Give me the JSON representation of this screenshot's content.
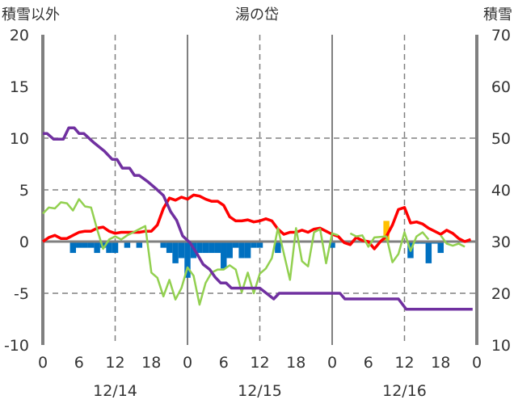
{
  "chart_data": {
    "type": "line",
    "title": "湯の岱",
    "ylabel_left": "積雪以外",
    "ylabel_right": "積雪",
    "ylim_left": [
      -10,
      20
    ],
    "ylim_right": [
      10,
      70
    ],
    "yticks_left": [
      "20",
      "15",
      "10",
      "5",
      "0",
      "-5",
      "-10"
    ],
    "yticks_left_values": [
      20,
      15,
      10,
      5,
      0,
      -5,
      -10
    ],
    "yticks_right": [
      "70",
      "60",
      "50",
      "40",
      "30",
      "20",
      "10"
    ],
    "yticks_right_values": [
      70,
      60,
      50,
      40,
      30,
      20,
      10
    ],
    "xlim_hours": [
      0,
      72
    ],
    "xticks": [
      "0",
      "6",
      "12",
      "18",
      "0",
      "6",
      "12",
      "18",
      "0",
      "6",
      "12",
      "18",
      "0"
    ],
    "dates": [
      {
        "label": "12/14",
        "hour": 12
      },
      {
        "label": "12/15",
        "hour": 36
      },
      {
        "label": "12/16",
        "hour": 60
      }
    ],
    "grid": "dashed horizontal at 10, 5, -5; dashed vertical at 12h; solid vertical at 0h",
    "colors": {
      "red": "#ff0000",
      "green": "#92d050",
      "purple": "#7030a0",
      "blue": "#0070c0",
      "orange": "#ffc000",
      "axis": "#808080"
    },
    "series": [
      {
        "name": "red",
        "axis": "left",
        "points": [
          [
            0,
            0
          ],
          [
            1,
            0.4
          ],
          [
            2,
            0.6
          ],
          [
            3,
            0.3
          ],
          [
            4,
            0.3
          ],
          [
            5,
            0.6
          ],
          [
            6,
            0.9
          ],
          [
            7,
            1.0
          ],
          [
            8,
            1.0
          ],
          [
            9,
            1.3
          ],
          [
            10,
            1.4
          ],
          [
            11,
            1.0
          ],
          [
            12,
            0.8
          ],
          [
            13,
            0.9
          ],
          [
            14,
            0.9
          ],
          [
            15,
            0.9
          ],
          [
            16,
            0.9
          ],
          [
            17,
            1.0
          ],
          [
            18,
            1.0
          ],
          [
            19,
            1.6
          ],
          [
            20,
            3.2
          ],
          [
            21,
            4.2
          ],
          [
            22,
            4.0
          ],
          [
            23,
            4.3
          ],
          [
            24,
            4.1
          ],
          [
            25,
            4.5
          ],
          [
            26,
            4.4
          ],
          [
            27,
            4.1
          ],
          [
            28,
            3.9
          ],
          [
            29,
            3.9
          ],
          [
            30,
            3.5
          ],
          [
            31,
            2.4
          ],
          [
            32,
            2.0
          ],
          [
            33,
            2.0
          ],
          [
            34,
            2.1
          ],
          [
            35,
            1.9
          ],
          [
            36,
            2.0
          ],
          [
            37,
            2.2
          ],
          [
            38,
            2.0
          ],
          [
            39,
            1.2
          ],
          [
            40,
            0.7
          ],
          [
            41,
            0.9
          ],
          [
            42,
            0.9
          ],
          [
            43,
            1.1
          ],
          [
            44,
            0.9
          ],
          [
            45,
            1.2
          ],
          [
            46,
            1.3
          ],
          [
            47,
            1.0
          ],
          [
            48,
            0.7
          ],
          [
            49,
            0.5
          ],
          [
            50,
            -0.1
          ],
          [
            51,
            -0.3
          ],
          [
            52,
            0.4
          ],
          [
            53,
            0.1
          ],
          [
            54,
            0.0
          ],
          [
            55,
            -0.7
          ],
          [
            56,
            0.0
          ],
          [
            57,
            0.5
          ],
          [
            58,
            1.6
          ],
          [
            59,
            3.1
          ],
          [
            60,
            3.3
          ],
          [
            61,
            1.8
          ],
          [
            62,
            1.9
          ],
          [
            63,
            1.7
          ],
          [
            64,
            1.3
          ],
          [
            65,
            1.0
          ],
          [
            66,
            0.7
          ],
          [
            67,
            1.1
          ],
          [
            68,
            0.8
          ],
          [
            69,
            0.3
          ],
          [
            70,
            0.0
          ],
          [
            71,
            0.2
          ]
        ]
      },
      {
        "name": "green",
        "axis": "left",
        "points": [
          [
            0,
            2.7
          ],
          [
            1,
            3.3
          ],
          [
            2,
            3.2
          ],
          [
            3,
            3.8
          ],
          [
            4,
            3.7
          ],
          [
            5,
            3.0
          ],
          [
            6,
            4.1
          ],
          [
            7,
            3.4
          ],
          [
            8,
            3.3
          ],
          [
            9,
            1.2
          ],
          [
            10,
            -0.7
          ],
          [
            11,
            0.2
          ],
          [
            12,
            0.5
          ],
          [
            13,
            0.2
          ],
          [
            14,
            0.6
          ],
          [
            15,
            0.9
          ],
          [
            16,
            1.2
          ],
          [
            17,
            1.5
          ],
          [
            18,
            -3.0
          ],
          [
            19,
            -3.5
          ],
          [
            20,
            -5.3
          ],
          [
            21,
            -3.7
          ],
          [
            22,
            -5.6
          ],
          [
            23,
            -4.5
          ],
          [
            24,
            -2.5
          ],
          [
            25,
            -3.3
          ],
          [
            26,
            -6.1
          ],
          [
            27,
            -4.0
          ],
          [
            28,
            -3.0
          ],
          [
            29,
            -2.7
          ],
          [
            30,
            -2.7
          ],
          [
            31,
            -2.3
          ],
          [
            32,
            -2.7
          ],
          [
            33,
            -4.9
          ],
          [
            34,
            -3.0
          ],
          [
            35,
            -5.0
          ],
          [
            36,
            -3.1
          ],
          [
            37,
            -2.6
          ],
          [
            38,
            -1.6
          ],
          [
            39,
            1.3
          ],
          [
            41,
            -3.7
          ],
          [
            42,
            1.3
          ],
          [
            43,
            -1.9
          ],
          [
            44,
            -2.4
          ],
          [
            45,
            0.9
          ],
          [
            46,
            1.2
          ],
          [
            47,
            -2.1
          ],
          [
            48,
            0.8
          ],
          [
            49,
            0.6
          ],
          [
            50,
            null
          ],
          [
            51,
            0.8
          ],
          [
            52,
            0.5
          ],
          [
            53,
            0.6
          ],
          [
            54,
            -0.5
          ],
          [
            55,
            0.4
          ],
          [
            57,
            0.5
          ],
          [
            58,
            -2.0
          ],
          [
            59,
            -1.2
          ],
          [
            60,
            0.9
          ],
          [
            61,
            -0.9
          ],
          [
            62,
            0.5
          ],
          [
            63,
            0.9
          ],
          [
            64,
            0.2
          ],
          [
            65,
            null
          ],
          [
            66,
            0.6
          ],
          [
            67,
            -0.2
          ],
          [
            68,
            -0.4
          ],
          [
            69,
            -0.2
          ],
          [
            70,
            -0.5
          ]
        ]
      },
      {
        "name": "purple",
        "axis": "right",
        "points": [
          [
            0,
            50.9
          ],
          [
            0.7,
            50.9
          ],
          [
            1.8,
            49.8
          ],
          [
            3.4,
            49.8
          ],
          [
            4.3,
            52
          ],
          [
            5.2,
            52
          ],
          [
            6,
            50.9
          ],
          [
            6.8,
            50.9
          ],
          [
            8.5,
            49.1
          ],
          [
            10.2,
            47.5
          ],
          [
            11.5,
            45.9
          ],
          [
            12.3,
            45.9
          ],
          [
            13.2,
            44.2
          ],
          [
            14.4,
            44.2
          ],
          [
            15.2,
            42.8
          ],
          [
            16,
            42.8
          ],
          [
            17.4,
            41.6
          ],
          [
            18.8,
            40.2
          ],
          [
            20,
            38.9
          ],
          [
            21.2,
            35.8
          ],
          [
            22.2,
            34.1
          ],
          [
            23.2,
            31.1
          ],
          [
            24.4,
            29.8
          ],
          [
            25.5,
            27.8
          ],
          [
            26.6,
            25.6
          ],
          [
            27.7,
            24.6
          ],
          [
            28.6,
            23.1
          ],
          [
            29.5,
            22
          ],
          [
            30.4,
            22
          ],
          [
            31.3,
            21
          ],
          [
            36,
            21
          ],
          [
            38.3,
            18.9
          ],
          [
            39.2,
            20
          ],
          [
            49.3,
            20
          ],
          [
            50.1,
            18.9
          ],
          [
            59,
            18.9
          ],
          [
            60.3,
            16.9
          ],
          [
            71.3,
            16.9
          ]
        ]
      }
    ],
    "bars": [
      {
        "name": "blue",
        "axis": "left",
        "values": [
          [
            5,
            -1.1
          ],
          [
            6,
            -0.6
          ],
          [
            7,
            -0.6
          ],
          [
            8,
            -0.6
          ],
          [
            9,
            -1.1
          ],
          [
            10,
            -0.6
          ],
          [
            11,
            -1.1
          ],
          [
            12,
            -1.1
          ],
          [
            14,
            -0.6
          ],
          [
            16,
            -0.6
          ],
          [
            20,
            -0.6
          ],
          [
            21,
            -1.1
          ],
          [
            22,
            -2.1
          ],
          [
            23,
            -1.6
          ],
          [
            24,
            -3.5
          ],
          [
            25,
            -1.6
          ],
          [
            26,
            -1.1
          ],
          [
            27,
            -1.1
          ],
          [
            28,
            -1.1
          ],
          [
            29,
            -1.1
          ],
          [
            30,
            -2.6
          ],
          [
            31,
            -1.6
          ],
          [
            32,
            -0.6
          ],
          [
            33,
            -1.6
          ],
          [
            34,
            -1.6
          ],
          [
            35,
            -0.6
          ],
          [
            36,
            -0.6
          ],
          [
            39,
            -1.1
          ],
          [
            48,
            -0.6
          ],
          [
            61,
            -1.6
          ],
          [
            62,
            -0.2
          ],
          [
            63,
            -0.2
          ],
          [
            64,
            -2.1
          ],
          [
            65,
            -0.2
          ],
          [
            66,
            -1.1
          ]
        ]
      },
      {
        "name": "orange",
        "axis": "left",
        "values": [
          [
            57,
            2.0
          ]
        ]
      }
    ]
  }
}
